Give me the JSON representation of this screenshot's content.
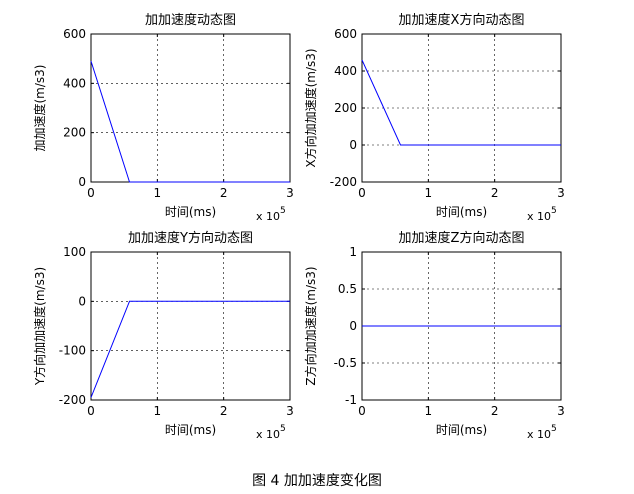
{
  "caption": "图 4  加加速度变化图",
  "chart_data": [
    {
      "type": "line",
      "title": "加加速度动态图",
      "xlabel": "时间(ms)",
      "ylabel": "加加速度(m/s3)",
      "x_exponent_label": "x 10^5",
      "xlim": [
        0,
        3
      ],
      "ylim": [
        0,
        600
      ],
      "xticks": [
        "0",
        "1",
        "2",
        "3"
      ],
      "yticks": [
        "0",
        "200",
        "400",
        "600"
      ],
      "grid": true,
      "series": [
        {
          "x": [
            0,
            0.58,
            3.0
          ],
          "y": [
            490,
            0,
            0
          ]
        }
      ]
    },
    {
      "type": "line",
      "title": "加加速度X方向动态图",
      "xlabel": "时间(ms)",
      "ylabel": "X方向加加速度(m/s3)",
      "x_exponent_label": "x 10^5",
      "xlim": [
        0,
        3
      ],
      "ylim": [
        -200,
        600
      ],
      "xticks": [
        "0",
        "1",
        "2",
        "3"
      ],
      "yticks": [
        "-200",
        "0",
        "200",
        "400",
        "600"
      ],
      "grid": true,
      "series": [
        {
          "x": [
            0,
            0.58,
            3.0
          ],
          "y": [
            460,
            0,
            0
          ]
        }
      ]
    },
    {
      "type": "line",
      "title": "加加速度Y方向动态图",
      "xlabel": "时间(ms)",
      "ylabel": "Y方向加加速度(m/s3)",
      "x_exponent_label": "x 10^5",
      "xlim": [
        0,
        3
      ],
      "ylim": [
        -200,
        100
      ],
      "xticks": [
        "0",
        "1",
        "2",
        "3"
      ],
      "yticks": [
        "-200",
        "-100",
        "0",
        "100"
      ],
      "grid": true,
      "series": [
        {
          "x": [
            0,
            0.58,
            2.2,
            3.0
          ],
          "y": [
            -195,
            0,
            0,
            0
          ]
        }
      ]
    },
    {
      "type": "line",
      "title": "加加速度Z方向动态图",
      "xlabel": "时间(ms)",
      "ylabel": "Z方向加加速度(m/s3)",
      "x_exponent_label": "x 10^5",
      "xlim": [
        0,
        3
      ],
      "ylim": [
        -1,
        1
      ],
      "xticks": [
        "0",
        "1",
        "2",
        "3"
      ],
      "yticks": [
        "-1",
        "-0.5",
        "0",
        "0.5",
        "1"
      ],
      "grid": true,
      "series": [
        {
          "x": [
            0,
            3.0
          ],
          "y": [
            0,
            0
          ]
        }
      ]
    }
  ]
}
